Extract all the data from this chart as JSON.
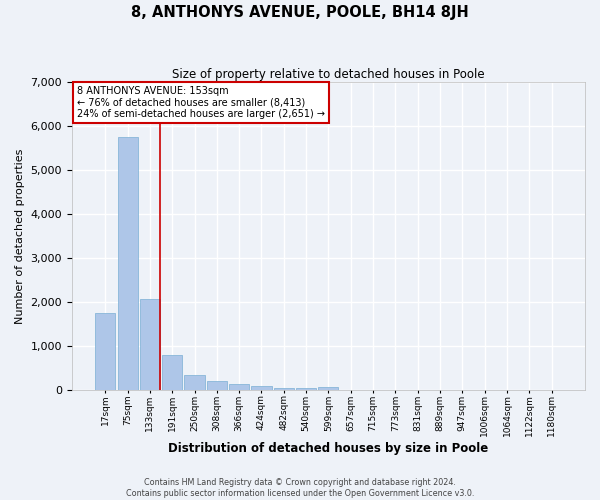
{
  "title": "8, ANTHONYS AVENUE, POOLE, BH14 8JH",
  "subtitle": "Size of property relative to detached houses in Poole",
  "xlabel": "Distribution of detached houses by size in Poole",
  "ylabel": "Number of detached properties",
  "footnote": "Contains HM Land Registry data © Crown copyright and database right 2024.\nContains public sector information licensed under the Open Government Licence v3.0.",
  "bar_labels": [
    "17sqm",
    "75sqm",
    "133sqm",
    "191sqm",
    "250sqm",
    "308sqm",
    "366sqm",
    "424sqm",
    "482sqm",
    "540sqm",
    "599sqm",
    "657sqm",
    "715sqm",
    "773sqm",
    "831sqm",
    "889sqm",
    "947sqm",
    "1006sqm",
    "1064sqm",
    "1122sqm",
    "1180sqm"
  ],
  "bar_values": [
    1750,
    5750,
    2075,
    800,
    350,
    210,
    135,
    90,
    60,
    55,
    80,
    0,
    0,
    0,
    0,
    0,
    0,
    0,
    0,
    0,
    0
  ],
  "red_line_index": 2,
  "annotation_line1": "8 ANTHONYS AVENUE: 153sqm",
  "annotation_line2": "← 76% of detached houses are smaller (8,413)",
  "annotation_line3": "24% of semi-detached houses are larger (2,651) →",
  "bar_color": "#aec6e8",
  "bar_edgecolor": "#7aafd4",
  "red_line_color": "#cc0000",
  "annotation_box_edgecolor": "#cc0000",
  "background_color": "#eef2f8",
  "grid_color": "#ffffff",
  "ylim": [
    0,
    7000
  ],
  "yticks": [
    0,
    1000,
    2000,
    3000,
    4000,
    5000,
    6000,
    7000
  ]
}
